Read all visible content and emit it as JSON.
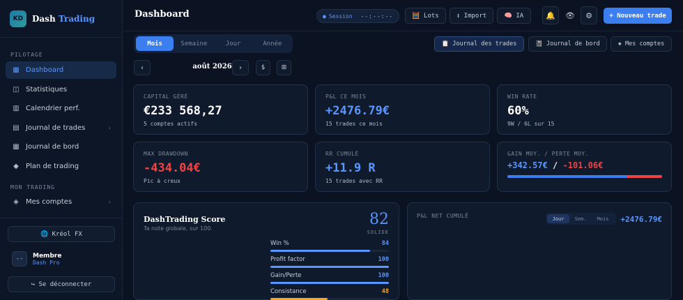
{
  "sidebar": {
    "logo_initials": "KD",
    "brand_main": "Dash",
    "brand_accent": "Trading",
    "sections": {
      "pilotage": "PILOTAGE",
      "mon_trading": "MON TRADING"
    },
    "items": [
      {
        "icon": "▦",
        "label": "Dashboard"
      },
      {
        "icon": "◫",
        "label": "Statistiques"
      },
      {
        "icon": "▥",
        "label": "Calendrier perf."
      },
      {
        "icon": "▤",
        "label": "Journal de trades"
      },
      {
        "icon": "▦",
        "label": "Journal de bord"
      },
      {
        "icon": "◆",
        "label": "Plan de trading"
      },
      {
        "icon": "◈",
        "label": "Mes comptes"
      }
    ],
    "chevron": "›",
    "lang_button": "🌐 Kréol FX",
    "member_avatar": "--",
    "member_name": "Membre",
    "member_plan": "Dash Pro",
    "logout": "↪ Se déconnecter"
  },
  "header": {
    "title": "Dashboard",
    "session_dot": "●",
    "session_label": "Session",
    "session_time": "--:--:--",
    "lots": "🧮 Lots",
    "import": "↕ Import",
    "ia": "🧠 IA",
    "bell_icon": "🔔",
    "eye_icon": "👁",
    "gear_icon": "⚙",
    "new_trade": "+ Nouveau trade"
  },
  "period_tabs": [
    "Mois",
    "Semaine",
    "Jour",
    "Année"
  ],
  "views": {
    "trades": "📋 Journal des trades",
    "bord": "📓 Journal de bord",
    "comptes": "◈ Mes comptes"
  },
  "month_nav": {
    "prev": "‹",
    "next": "›",
    "label": "août 2026",
    "currency": "$",
    "calendar_icon": "⊞"
  },
  "cards": {
    "capital": {
      "label": "CAPITAL GÉRÉ",
      "value": "€233 568,27",
      "sub": "5 comptes actifs"
    },
    "pnl_month": {
      "label": "P&L CE MOIS",
      "value": "+2476.79€",
      "sub": "15 trades ce mois"
    },
    "win_rate": {
      "label": "WIN RATE",
      "value": "60%",
      "sub": "9W / 6L sur 15"
    },
    "drawdown": {
      "label": "MAX DRAWDOWN",
      "value": "-434.04€",
      "sub": "Pic à creux"
    },
    "rr": {
      "label": "RR CUMULÉ",
      "value": "+11.9 R",
      "sub": "15 trades avec RR"
    },
    "avg": {
      "label": "GAIN MOY. / PERTE MOY.",
      "gain": "+342.57€",
      "sep": "/",
      "loss": "-101.06€",
      "gain_share": 0.77
    }
  },
  "score": {
    "title": "DashTrading Score",
    "subtitle": "Ta note globale, sur 100.",
    "value": "82",
    "grade": "SOLIDE",
    "metrics": [
      {
        "label": "Win %",
        "value": "84",
        "pct": 84
      },
      {
        "label": "Profit factor",
        "value": "100",
        "pct": 100
      },
      {
        "label": "Gain/Perte",
        "value": "100",
        "pct": 100
      },
      {
        "label": "Consistance",
        "value": "48",
        "pct": 48
      }
    ]
  },
  "pnl_chart": {
    "title": "P&L NET CUMULÉ",
    "tabs": [
      "Jour",
      "Sem.",
      "Mois"
    ],
    "value": "+2476.79€"
  },
  "colors": {
    "accent": "#3b7ef0",
    "positive": "#5a96ff",
    "negative": "#ef4444",
    "warning": "#f5a524",
    "background": "#0b1322"
  }
}
